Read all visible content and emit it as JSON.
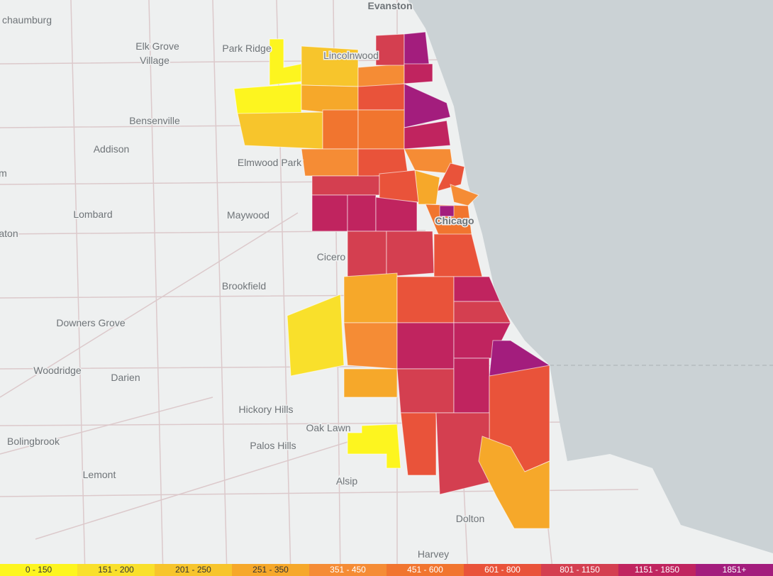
{
  "map": {
    "labels": [
      "Evanston",
      "chaumburg",
      "Elk Grove",
      "Village",
      "Park Ridge",
      "Lincolnwood",
      "Bensenville",
      "Addison",
      "Elmwood Park",
      "m",
      "Lombard",
      "Maywood",
      "aton",
      "Chicago",
      "Cicero",
      "Brookfield",
      "Downers Grove",
      "Woodridge",
      "Darien",
      "Hickory Hills",
      "Oak Lawn",
      "Bolingbrook",
      "Palos Hills",
      "Lemont",
      "Alsip",
      "Dolton",
      "Harvey"
    ],
    "legend": [
      {
        "label": "0 - 150",
        "color": "#fdf51f"
      },
      {
        "label": "151 - 200",
        "color": "#f9e02b"
      },
      {
        "label": "201 - 250",
        "color": "#f7c52c"
      },
      {
        "label": "251 - 350",
        "color": "#f6a82a"
      },
      {
        "label": "351 - 450",
        "color": "#f58c35"
      },
      {
        "label": "451 - 600",
        "color": "#f1752f"
      },
      {
        "label": "601 - 800",
        "color": "#e9533a"
      },
      {
        "label": "801 - 1150",
        "color": "#d43f50"
      },
      {
        "label": "1151 - 1850",
        "color": "#c0245f"
      },
      {
        "label": "1851+",
        "color": "#a31d7d"
      }
    ]
  }
}
